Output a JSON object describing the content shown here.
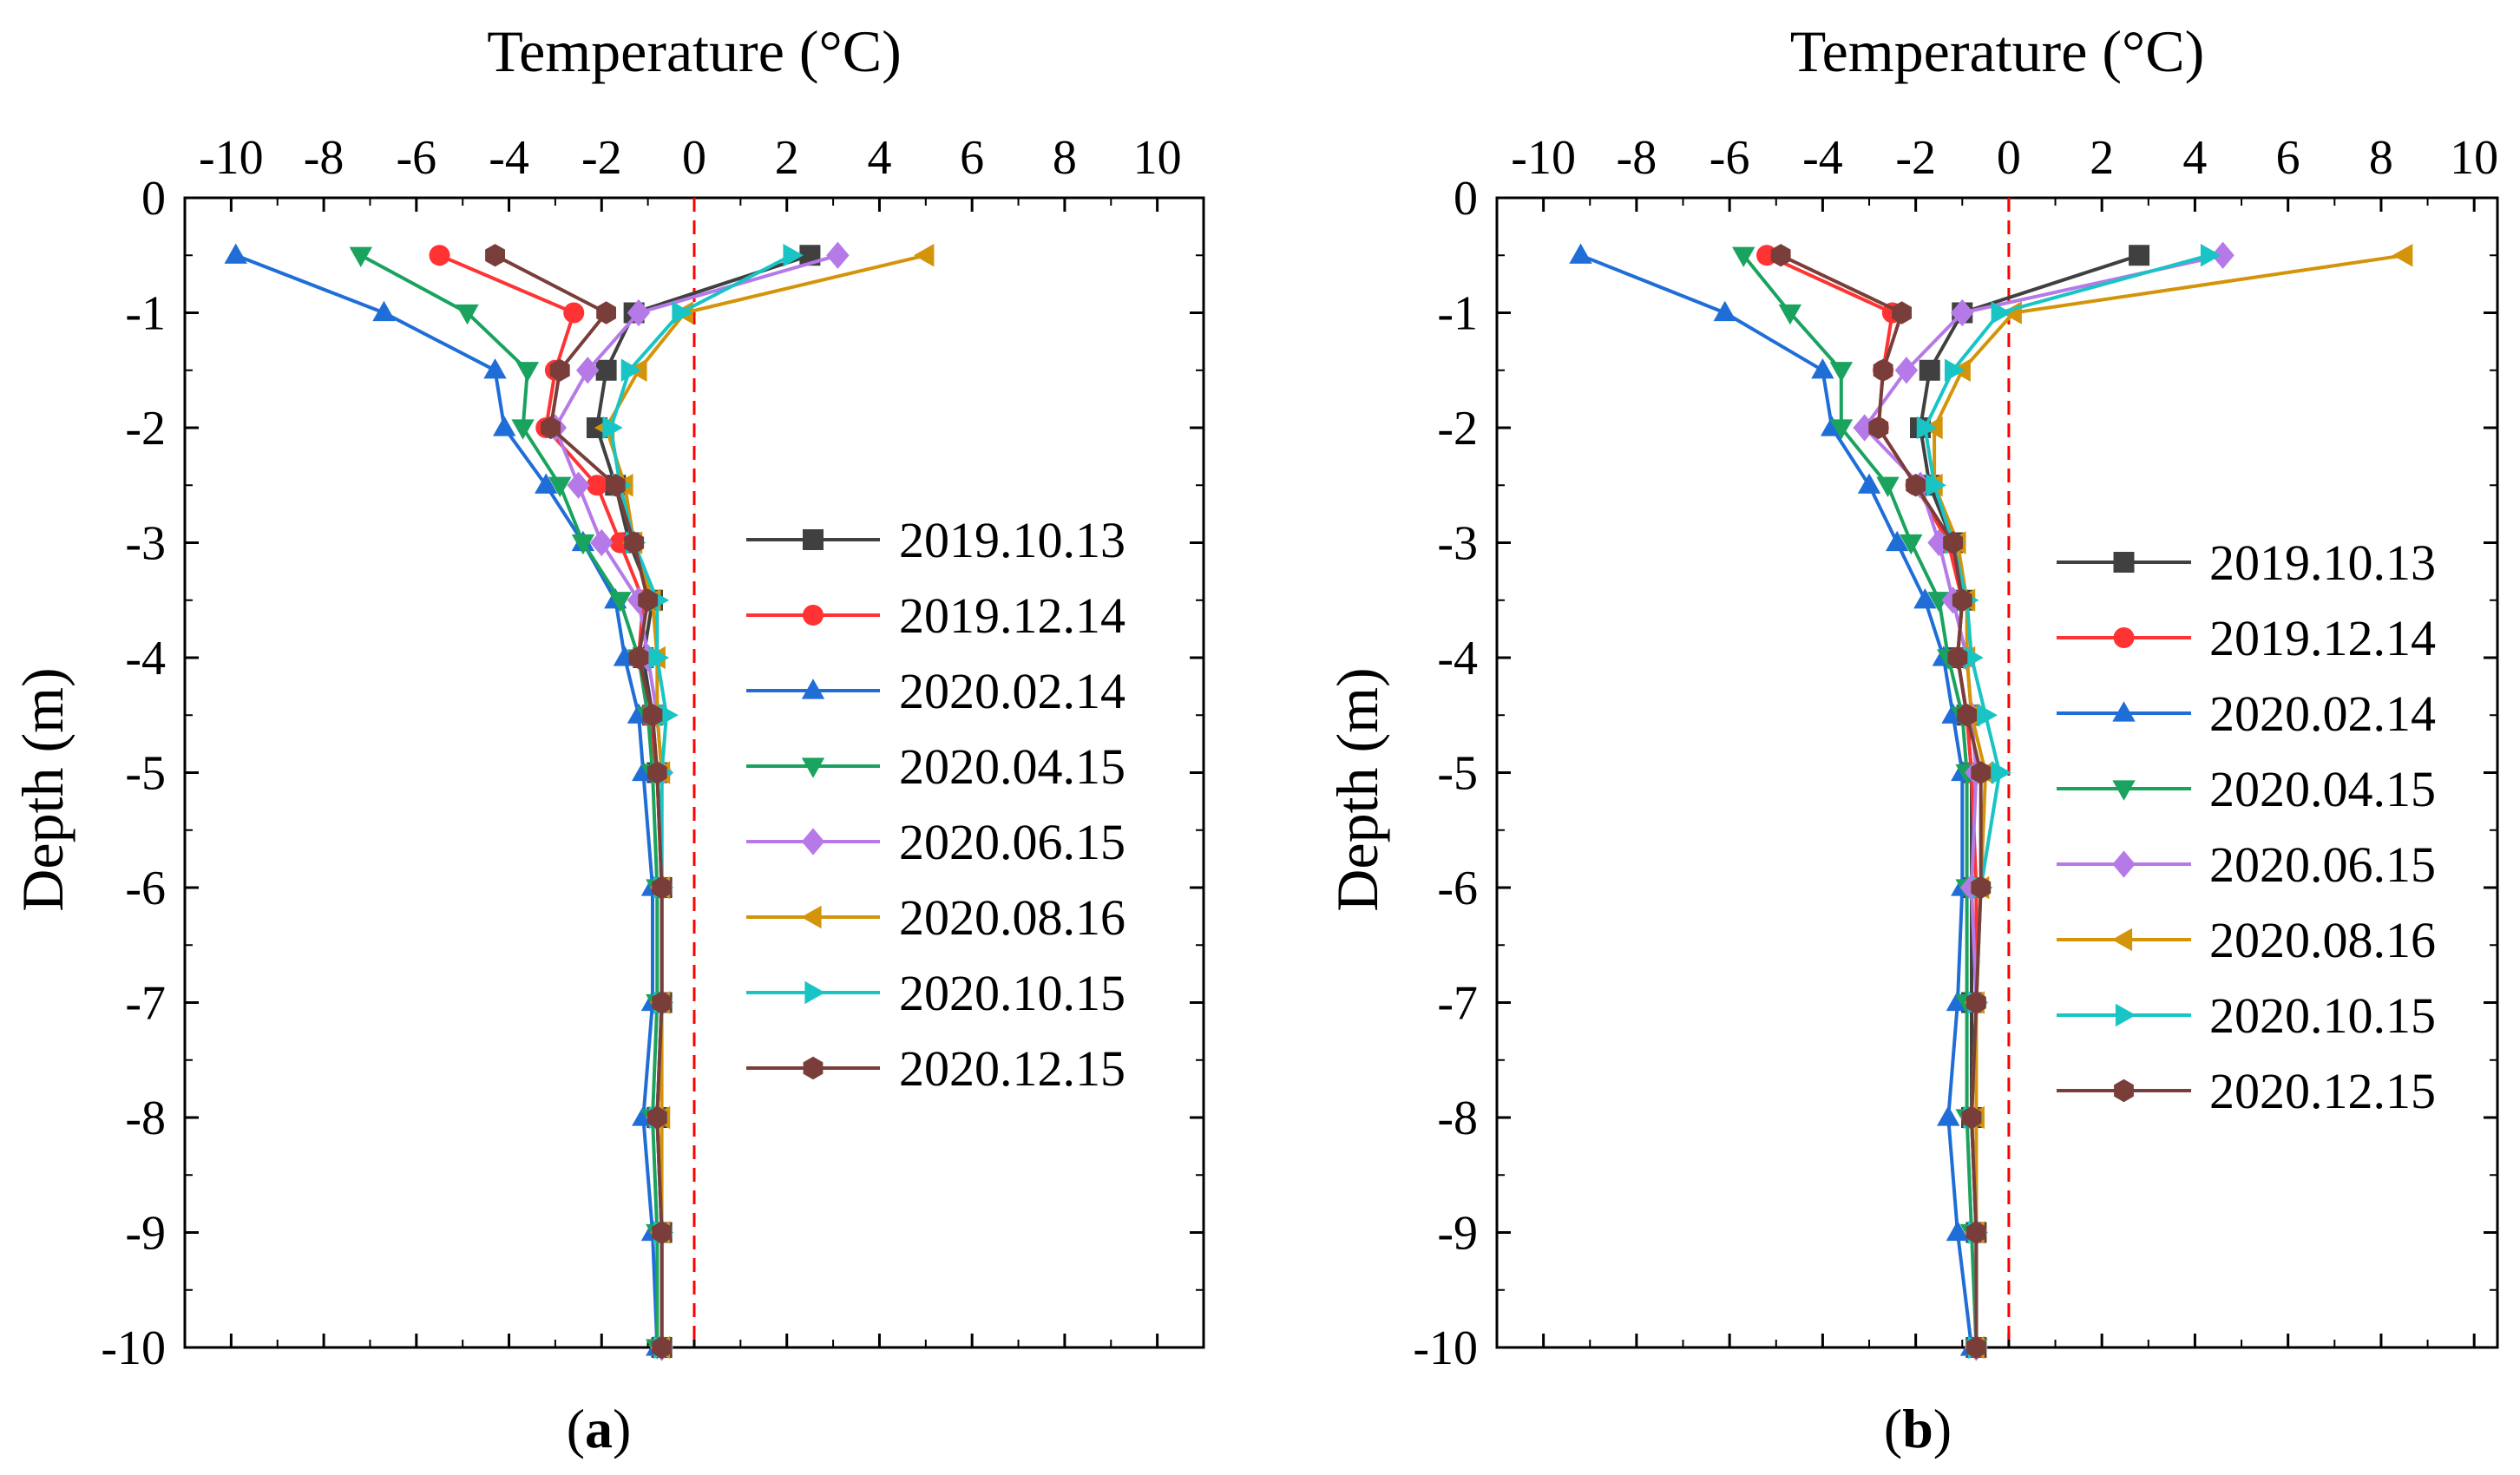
{
  "chart_data": [
    {
      "type": "line",
      "panel_label": "a",
      "xlabel": "Temperature (°C)",
      "ylabel": "Depth (m)",
      "xlim": [
        -11,
        11
      ],
      "ylim": [
        -10,
        0
      ],
      "xticks": [
        -10,
        -8,
        -6,
        -4,
        -2,
        0,
        2,
        4,
        6,
        8,
        10
      ],
      "yticks": [
        0,
        -1,
        -2,
        -3,
        -4,
        -5,
        -6,
        -7,
        -8,
        -9,
        -10
      ],
      "reference_line": {
        "x": 0,
        "color": "#ff0000",
        "style": "dashed"
      },
      "depths": [
        -0.5,
        -1,
        -1.5,
        -2,
        -2.5,
        -3,
        -3.5,
        -4,
        -4.5,
        -5,
        -6,
        -7,
        -8,
        -9,
        -10
      ],
      "series": [
        {
          "name": "2019.10.13",
          "color": "#404040",
          "marker": "square",
          "values": [
            2.5,
            -1.3,
            -1.9,
            -2.1,
            -1.7,
            -1.4,
            -0.9,
            -1.1,
            -0.9,
            -0.8,
            -0.7,
            -0.7,
            -0.8,
            -0.7,
            -0.7
          ]
        },
        {
          "name": "2019.12.14",
          "color": "#ff3333",
          "marker": "circle",
          "values": [
            -5.5,
            -2.6,
            -3.0,
            -3.2,
            -2.1,
            -1.6,
            -1.1,
            -1.2,
            -1.0,
            -0.8,
            -0.7,
            -0.7,
            -0.8,
            -0.7,
            -0.7
          ]
        },
        {
          "name": "2020.02.14",
          "color": "#1f6ed8",
          "marker": "triangle-up",
          "values": [
            -9.9,
            -6.7,
            -4.3,
            -4.1,
            -3.2,
            -2.4,
            -1.7,
            -1.5,
            -1.2,
            -1.1,
            -0.9,
            -0.9,
            -1.1,
            -0.9,
            -0.8
          ]
        },
        {
          "name": "2020.04.15",
          "color": "#1aa35e",
          "marker": "triangle-down",
          "values": [
            -7.2,
            -4.9,
            -3.6,
            -3.7,
            -2.9,
            -2.4,
            -1.6,
            -1.2,
            -1.0,
            -0.9,
            -0.8,
            -0.8,
            -0.9,
            -0.8,
            -0.8
          ]
        },
        {
          "name": "2020.06.15",
          "color": "#b57ae8",
          "marker": "diamond",
          "values": [
            3.1,
            -1.2,
            -2.3,
            -3.0,
            -2.5,
            -2.0,
            -1.2,
            -1.0,
            -0.8,
            -0.7,
            -0.7,
            -0.7,
            -0.8,
            -0.7,
            -0.7
          ]
        },
        {
          "name": "2020.08.16",
          "color": "#d4940a",
          "marker": "triangle-left",
          "values": [
            5.0,
            -0.2,
            -1.2,
            -1.9,
            -1.5,
            -1.3,
            -0.9,
            -0.8,
            -0.8,
            -0.7,
            -0.7,
            -0.7,
            -0.7,
            -0.7,
            -0.7
          ]
        },
        {
          "name": "2020.10.15",
          "color": "#18c4c4",
          "marker": "triangle-right",
          "values": [
            2.1,
            -0.3,
            -1.4,
            -1.8,
            -1.6,
            -1.3,
            -0.8,
            -0.8,
            -0.6,
            -0.7,
            -0.7,
            -0.7,
            -0.8,
            -0.7,
            -0.7
          ]
        },
        {
          "name": "2020.12.15",
          "color": "#7a3e3a",
          "marker": "hexagon",
          "values": [
            -4.3,
            -1.9,
            -2.9,
            -3.1,
            -1.7,
            -1.3,
            -1.0,
            -1.2,
            -0.9,
            -0.8,
            -0.7,
            -0.7,
            -0.8,
            -0.7,
            -0.7
          ]
        }
      ]
    },
    {
      "type": "line",
      "panel_label": "b",
      "xlabel": "Temperature (°C)",
      "ylabel": "Depth (m)",
      "xlim": [
        -11,
        10.5
      ],
      "ylim": [
        -10,
        0
      ],
      "xticks": [
        -10,
        -8,
        -6,
        -4,
        -2,
        0,
        2,
        4,
        6,
        8,
        10
      ],
      "yticks": [
        0,
        -1,
        -2,
        -3,
        -4,
        -5,
        -6,
        -7,
        -8,
        -9,
        -10
      ],
      "reference_line": {
        "x": 0,
        "color": "#ff0000",
        "style": "dashed"
      },
      "depths": [
        -0.5,
        -1,
        -1.5,
        -2,
        -2.5,
        -3,
        -3.5,
        -4,
        -4.5,
        -5,
        -6,
        -7,
        -8,
        -9,
        -10
      ],
      "series": [
        {
          "name": "2019.10.13",
          "color": "#404040",
          "marker": "square",
          "values": [
            2.8,
            -1.0,
            -1.7,
            -1.9,
            -1.7,
            -1.2,
            -1.0,
            -1.1,
            -0.9,
            -0.8,
            -0.8,
            -0.8,
            -0.8,
            -0.7,
            -0.7
          ]
        },
        {
          "name": "2019.12.14",
          "color": "#ff3333",
          "marker": "circle",
          "values": [
            -5.2,
            -2.5,
            -2.7,
            -2.8,
            -2.0,
            -1.3,
            -1.0,
            -1.1,
            -0.9,
            -0.8,
            -0.7,
            -0.7,
            -0.8,
            -0.7,
            -0.7
          ]
        },
        {
          "name": "2020.02.14",
          "color": "#1f6ed8",
          "marker": "triangle-up",
          "values": [
            -9.2,
            -6.1,
            -4.0,
            -3.8,
            -3.0,
            -2.4,
            -1.8,
            -1.4,
            -1.2,
            -1.0,
            -1.0,
            -1.1,
            -1.3,
            -1.1,
            -0.8
          ]
        },
        {
          "name": "2020.04.15",
          "color": "#1aa35e",
          "marker": "triangle-down",
          "values": [
            -5.7,
            -4.7,
            -3.6,
            -3.6,
            -2.6,
            -2.1,
            -1.5,
            -1.3,
            -1.0,
            -0.9,
            -0.9,
            -0.9,
            -0.9,
            -0.8,
            -0.7
          ]
        },
        {
          "name": "2020.06.15",
          "color": "#b57ae8",
          "marker": "diamond",
          "values": [
            4.6,
            -1.0,
            -2.2,
            -3.1,
            -1.9,
            -1.5,
            -1.2,
            -0.9,
            -0.8,
            -0.7,
            -0.8,
            -0.7,
            -0.8,
            -0.7,
            -0.7
          ]
        },
        {
          "name": "2020.08.16",
          "color": "#d4940a",
          "marker": "triangle-left",
          "values": [
            8.5,
            0.1,
            -1.0,
            -1.6,
            -1.6,
            -1.1,
            -0.9,
            -0.9,
            -0.8,
            -0.5,
            -0.6,
            -0.7,
            -0.7,
            -0.7,
            -0.7
          ]
        },
        {
          "name": "2020.10.15",
          "color": "#18c4c4",
          "marker": "triangle-right",
          "values": [
            4.3,
            -0.2,
            -1.2,
            -1.8,
            -1.6,
            -1.2,
            -0.9,
            -0.8,
            -0.5,
            -0.2,
            -0.6,
            -0.7,
            -0.8,
            -0.7,
            -0.7
          ]
        },
        {
          "name": "2020.12.15",
          "color": "#7a3e3a",
          "marker": "hexagon",
          "values": [
            -4.9,
            -2.3,
            -2.7,
            -2.8,
            -2.0,
            -1.2,
            -1.0,
            -1.1,
            -0.9,
            -0.6,
            -0.6,
            -0.7,
            -0.8,
            -0.7,
            -0.7
          ]
        }
      ]
    }
  ]
}
